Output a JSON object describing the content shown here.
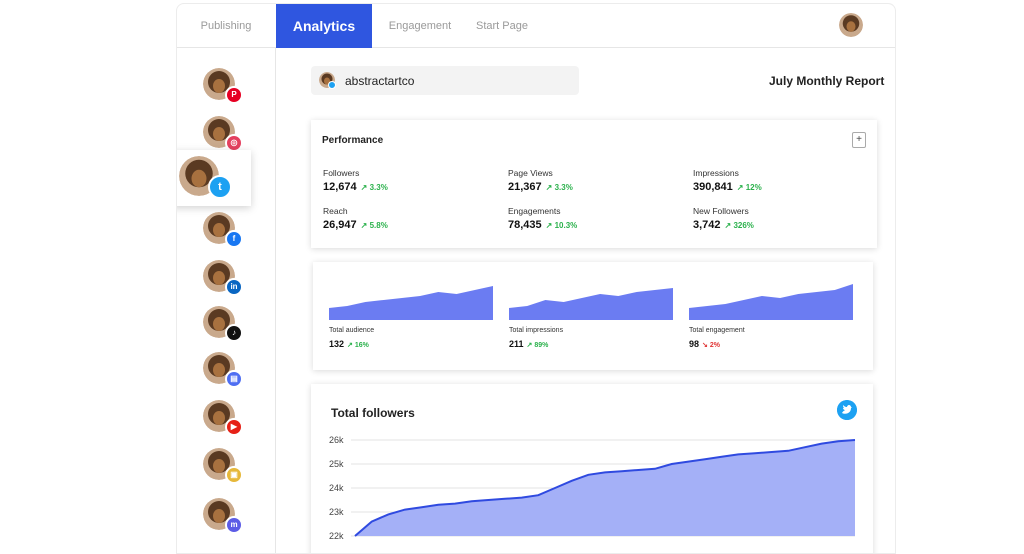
{
  "nav": {
    "tabs": [
      {
        "label": "Publishing"
      },
      {
        "label": "Analytics"
      },
      {
        "label": "Engagement"
      },
      {
        "label": "Start Page"
      }
    ],
    "active_tab": "Analytics"
  },
  "sidebar": {
    "accounts": [
      {
        "network": "pinterest",
        "icon": "pinterest-icon",
        "color": "#e60023",
        "glyph": "P"
      },
      {
        "network": "instagram",
        "icon": "instagram-icon",
        "color": "#e4405f",
        "glyph": "◎"
      },
      {
        "network": "twitter",
        "icon": "twitter-icon",
        "color": "#1da1f2",
        "glyph": "t",
        "selected": true
      },
      {
        "network": "facebook",
        "icon": "facebook-icon",
        "color": "#1877f2",
        "glyph": "f"
      },
      {
        "network": "linkedin",
        "icon": "linkedin-icon",
        "color": "#0a66c2",
        "glyph": "in"
      },
      {
        "network": "tiktok",
        "icon": "tiktok-icon",
        "color": "#111111",
        "glyph": "♪"
      },
      {
        "network": "google-business",
        "icon": "google-business-icon",
        "color": "#4e6ef2",
        "glyph": "▤"
      },
      {
        "network": "youtube",
        "icon": "youtube-icon",
        "color": "#e62117",
        "glyph": "▶"
      },
      {
        "network": "shop",
        "icon": "shop-icon",
        "color": "#e6b83a",
        "glyph": "▣"
      },
      {
        "network": "mastodon",
        "icon": "mastodon-icon",
        "color": "#5c5ce6",
        "glyph": "m"
      }
    ]
  },
  "account": {
    "name": "abstractartco"
  },
  "report": {
    "title": "July Monthly Report"
  },
  "performance": {
    "title": "Performance",
    "add_label": "+",
    "metrics": [
      {
        "label": "Followers",
        "value": "12,674",
        "change": "↗ 3.3%"
      },
      {
        "label": "Page Views",
        "value": "21,367",
        "change": "↗ 3.3%"
      },
      {
        "label": "Impressions",
        "value": "390,841",
        "change": "↗ 12%"
      },
      {
        "label": "Reach",
        "value": "26,947",
        "change": "↗ 5.8%"
      },
      {
        "label": "Engagements",
        "value": "78,435",
        "change": "↗ 10.3%"
      },
      {
        "label": "New Followers",
        "value": "3,742",
        "change": "↗ 326%"
      }
    ]
  },
  "mini_charts": [
    {
      "label": "Total audience",
      "value": "132",
      "change": "↗ 16%",
      "change_color": "#2bb14c",
      "points": [
        18,
        18.5,
        19.5,
        20,
        20.5,
        21,
        22,
        21.5,
        22.5,
        23.5
      ]
    },
    {
      "label": "Total impressions",
      "value": "211",
      "change": "↗ 89%",
      "change_color": "#2bb14c",
      "points": [
        18,
        18.5,
        20,
        19.5,
        20.5,
        21.5,
        21,
        22,
        22.5,
        23
      ]
    },
    {
      "label": "Total engagement",
      "value": "98",
      "change": "↘ 2%",
      "change_color": "#e03535",
      "points": [
        18,
        18.5,
        19,
        20,
        21,
        20.5,
        21.5,
        22,
        22.5,
        24
      ]
    }
  ],
  "chart_data": {
    "type": "area",
    "title": "Total followers",
    "xlabel": "",
    "ylabel": "",
    "ylim": [
      22000,
      26000
    ],
    "yticks": [
      "26k",
      "25k",
      "24k",
      "23k",
      "22k"
    ],
    "series": [
      {
        "name": "Followers",
        "values": [
          22000,
          22600,
          22900,
          23100,
          23200,
          23300,
          23350,
          23450,
          23500,
          23550,
          23600,
          23700,
          24000,
          24300,
          24550,
          24650,
          24700,
          24750,
          24800,
          25000,
          25100,
          25200,
          25300,
          25400,
          25450,
          25500,
          25550,
          25700,
          25850,
          25950,
          26000
        ]
      }
    ]
  },
  "colors": {
    "accent": "#2f56e0",
    "area_fill": "#a4b0f7",
    "area_line": "#2f4ae0",
    "mini_fill": "#6b7cf2",
    "positive": "#2bb14c",
    "negative": "#e03535"
  }
}
